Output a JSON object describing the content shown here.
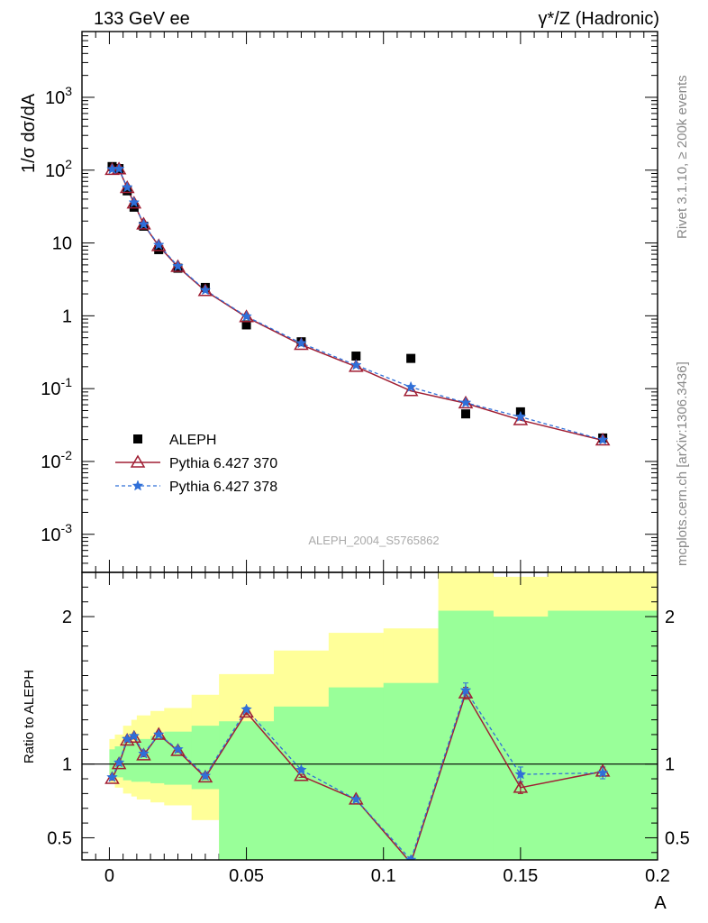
{
  "header": {
    "left_title": "133 GeV ee",
    "right_title": "γ*/Z (Hadronic)"
  },
  "side_labels": {
    "rivet": "Rivet 3.1.10, ≥ 200k events",
    "mcplots": "mcplots.cern.ch [arXiv:1306.3436]"
  },
  "watermark": "ALEPH_2004_S5765862",
  "colors": {
    "data": "#000000",
    "pythia370": "#a01e33",
    "pythia378": "#2f6fd8",
    "band_outer": "#ffff99",
    "band_inner": "#99ff99"
  },
  "chart_data": [
    {
      "type": "scatter",
      "title": "",
      "xlabel": "A",
      "ylabel": "1/σ dσ/dA",
      "xlim": [
        -0.01,
        0.2
      ],
      "ylim": [
        0.0003,
        8000
      ],
      "yscale": "log",
      "yticks": [
        "10^-3",
        "10^-2",
        "10^-1",
        "1",
        "10",
        "10^2",
        "10^3"
      ],
      "legend_position": "lower-left",
      "series": [
        {
          "name": "ALEPH",
          "style": "markers",
          "x": [
            0.001,
            0.0035,
            0.0065,
            0.009,
            0.0125,
            0.018,
            0.025,
            0.035,
            0.05,
            0.07,
            0.09,
            0.11,
            0.13,
            0.15,
            0.18
          ],
          "y": [
            112,
            105,
            52,
            31,
            17,
            8.1,
            4.5,
            2.45,
            0.75,
            0.44,
            0.28,
            0.26,
            0.045,
            0.048,
            0.021
          ]
        },
        {
          "name": "Pythia 6.427 370",
          "style": "line-triangle",
          "x": [
            0.001,
            0.0035,
            0.0065,
            0.009,
            0.0125,
            0.018,
            0.025,
            0.035,
            0.05,
            0.07,
            0.09,
            0.11,
            0.13,
            0.15,
            0.18
          ],
          "y": [
            101,
            103,
            57,
            35,
            18,
            9.1,
            4.7,
            2.2,
            0.96,
            0.4,
            0.2,
            0.093,
            0.063,
            0.037,
            0.0195
          ]
        },
        {
          "name": "Pythia 6.427 378",
          "style": "dashed-star",
          "x": [
            0.001,
            0.0035,
            0.0065,
            0.009,
            0.0125,
            0.018,
            0.025,
            0.035,
            0.05,
            0.07,
            0.09,
            0.11,
            0.13,
            0.15,
            0.18
          ],
          "y": [
            103,
            104,
            58,
            36,
            18,
            9.4,
            4.8,
            2.25,
            0.98,
            0.42,
            0.21,
            0.105,
            0.064,
            0.041,
            0.0198
          ]
        }
      ]
    },
    {
      "type": "line",
      "title": "",
      "xlabel": "A",
      "ylabel": "Ratio to ALEPH",
      "xlim": [
        -0.01,
        0.2
      ],
      "ylim": [
        0.35,
        2.3
      ],
      "ytick_values": [
        0.5,
        1,
        2
      ],
      "yticks": [
        "0.5",
        "1",
        "2"
      ],
      "xticks": [
        "0",
        "0.05",
        "0.1",
        "0.15",
        "0.2"
      ],
      "xtick_values": [
        0,
        0.05,
        0.1,
        0.15,
        0.2
      ],
      "reference_line": 1,
      "bins": [
        [
          0,
          0.002
        ],
        [
          0.002,
          0.005
        ],
        [
          0.005,
          0.008
        ],
        [
          0.008,
          0.01
        ],
        [
          0.01,
          0.015
        ],
        [
          0.015,
          0.02
        ],
        [
          0.02,
          0.03
        ],
        [
          0.03,
          0.04
        ],
        [
          0.04,
          0.06
        ],
        [
          0.06,
          0.08
        ],
        [
          0.08,
          0.1
        ],
        [
          0.1,
          0.12
        ],
        [
          0.12,
          0.14
        ],
        [
          0.14,
          0.16
        ],
        [
          0.16,
          0.2
        ]
      ],
      "band_outer": [
        [
          0.87,
          1.17
        ],
        [
          0.84,
          1.2
        ],
        [
          0.8,
          1.26
        ],
        [
          0.78,
          1.3
        ],
        [
          0.76,
          1.33
        ],
        [
          0.74,
          1.36
        ],
        [
          0.72,
          1.38
        ],
        [
          0.62,
          1.47
        ],
        [
          0.4,
          1.61
        ],
        [
          0.35,
          1.77
        ],
        [
          0.6,
          1.89
        ],
        [
          0.56,
          1.92
        ],
        [
          0.35,
          2.3
        ],
        [
          0.35,
          2.27
        ],
        [
          0.35,
          2.3
        ]
      ],
      "band_inner": [
        [
          0.93,
          1.1
        ],
        [
          0.91,
          1.12
        ],
        [
          0.89,
          1.14
        ],
        [
          0.88,
          1.15
        ],
        [
          0.88,
          1.17
        ],
        [
          0.87,
          1.19
        ],
        [
          0.86,
          1.22
        ],
        [
          0.83,
          1.26
        ],
        [
          0.35,
          1.29
        ],
        [
          0.35,
          1.39
        ],
        [
          0.35,
          1.52
        ],
        [
          0.35,
          1.55
        ],
        [
          0.35,
          2.04
        ],
        [
          0.35,
          2.0
        ],
        [
          0.35,
          2.04
        ]
      ],
      "x": [
        0.001,
        0.0035,
        0.0065,
        0.009,
        0.0125,
        0.018,
        0.025,
        0.035,
        0.05,
        0.07,
        0.09,
        0.11,
        0.13,
        0.15,
        0.18
      ],
      "series": [
        {
          "name": "Pythia 6.427 370",
          "values": [
            0.9,
            1.0,
            1.16,
            1.18,
            1.06,
            1.2,
            1.09,
            0.91,
            1.35,
            0.92,
            0.76,
            0.33,
            1.48,
            0.84,
            0.95
          ],
          "errors": [
            0.01,
            0.01,
            0.01,
            0.01,
            0.01,
            0.01,
            0.01,
            0.01,
            0.015,
            0.01,
            0.015,
            0.02,
            0.04,
            0.04,
            0.03
          ]
        },
        {
          "name": "Pythia 6.427 378",
          "values": [
            0.91,
            1.01,
            1.17,
            1.19,
            1.07,
            1.2,
            1.1,
            0.92,
            1.37,
            0.96,
            0.76,
            0.35,
            1.5,
            0.93,
            0.94
          ],
          "errors": [
            0.01,
            0.01,
            0.01,
            0.01,
            0.01,
            0.01,
            0.01,
            0.01,
            0.015,
            0.015,
            0.015,
            0.02,
            0.05,
            0.05,
            0.04
          ]
        }
      ]
    }
  ]
}
